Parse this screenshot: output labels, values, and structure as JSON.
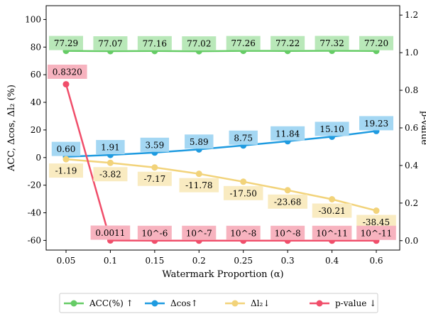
{
  "chart_data": {
    "type": "line",
    "xlabel": "Watermark Proportion (α)",
    "ylabel_left": "ACC, Δcos, Δl₂ (%)",
    "ylabel_right": "p-value",
    "categories": [
      "0.05",
      "0.1",
      "0.15",
      "0.2",
      "0.25",
      "0.3",
      "0.4",
      "0.6"
    ],
    "ylim_left": [
      -67,
      110
    ],
    "yticks_left": [
      -60,
      -40,
      -20,
      0,
      20,
      40,
      60,
      80,
      100
    ],
    "ylim_right": [
      -0.05,
      1.25
    ],
    "yticks_right": [
      "0.0",
      "0.2",
      "0.4",
      "0.6",
      "0.8",
      "1.0",
      "1.2"
    ],
    "series": [
      {
        "name": "ACC(%) ↑",
        "axis": "left",
        "color": "#66cc66",
        "label_bg": "#b9e8b9",
        "label_pos": "above",
        "values": [
          77.29,
          77.07,
          77.16,
          77.02,
          77.26,
          77.22,
          77.32,
          77.2
        ],
        "labels": [
          "77.29",
          "77.07",
          "77.16",
          "77.02",
          "77.26",
          "77.22",
          "77.32",
          "77.20"
        ]
      },
      {
        "name": "Δcos↑",
        "axis": "left",
        "color": "#1f9be0",
        "label_bg": "#a4d7f3",
        "label_pos": "above",
        "values": [
          0.6,
          1.91,
          3.59,
          5.89,
          8.75,
          11.84,
          15.1,
          19.23
        ],
        "labels": [
          "0.60",
          "1.91",
          "3.59",
          "5.89",
          "8.75",
          "11.84",
          "15.10",
          "19.23"
        ]
      },
      {
        "name": "Δl₂↓",
        "axis": "left",
        "color": "#f2d37a",
        "label_bg": "#f9ebc1",
        "label_pos": "below",
        "values": [
          -1.19,
          -3.82,
          -7.17,
          -11.78,
          -17.5,
          -23.68,
          -30.21,
          -38.45
        ],
        "labels": [
          "-1.19",
          "-3.82",
          "-7.17",
          "-11.78",
          "-17.50",
          "-23.68",
          "-30.21",
          "-38.45"
        ]
      },
      {
        "name": "p-value ↓",
        "axis": "right",
        "color": "#f04e6a",
        "label_bg": "#f7b3bf",
        "label_pos": "above",
        "values": [
          0.832,
          0.0011,
          1e-06,
          1e-07,
          1e-08,
          1e-08,
          1e-11,
          1e-11
        ],
        "labels": [
          "0.8320",
          "0.0011",
          "10^-6",
          "10^-7",
          "10^-8",
          "10^-8",
          "10^-11",
          "10^-11"
        ]
      }
    ],
    "grid": false,
    "legend": "bottom"
  }
}
